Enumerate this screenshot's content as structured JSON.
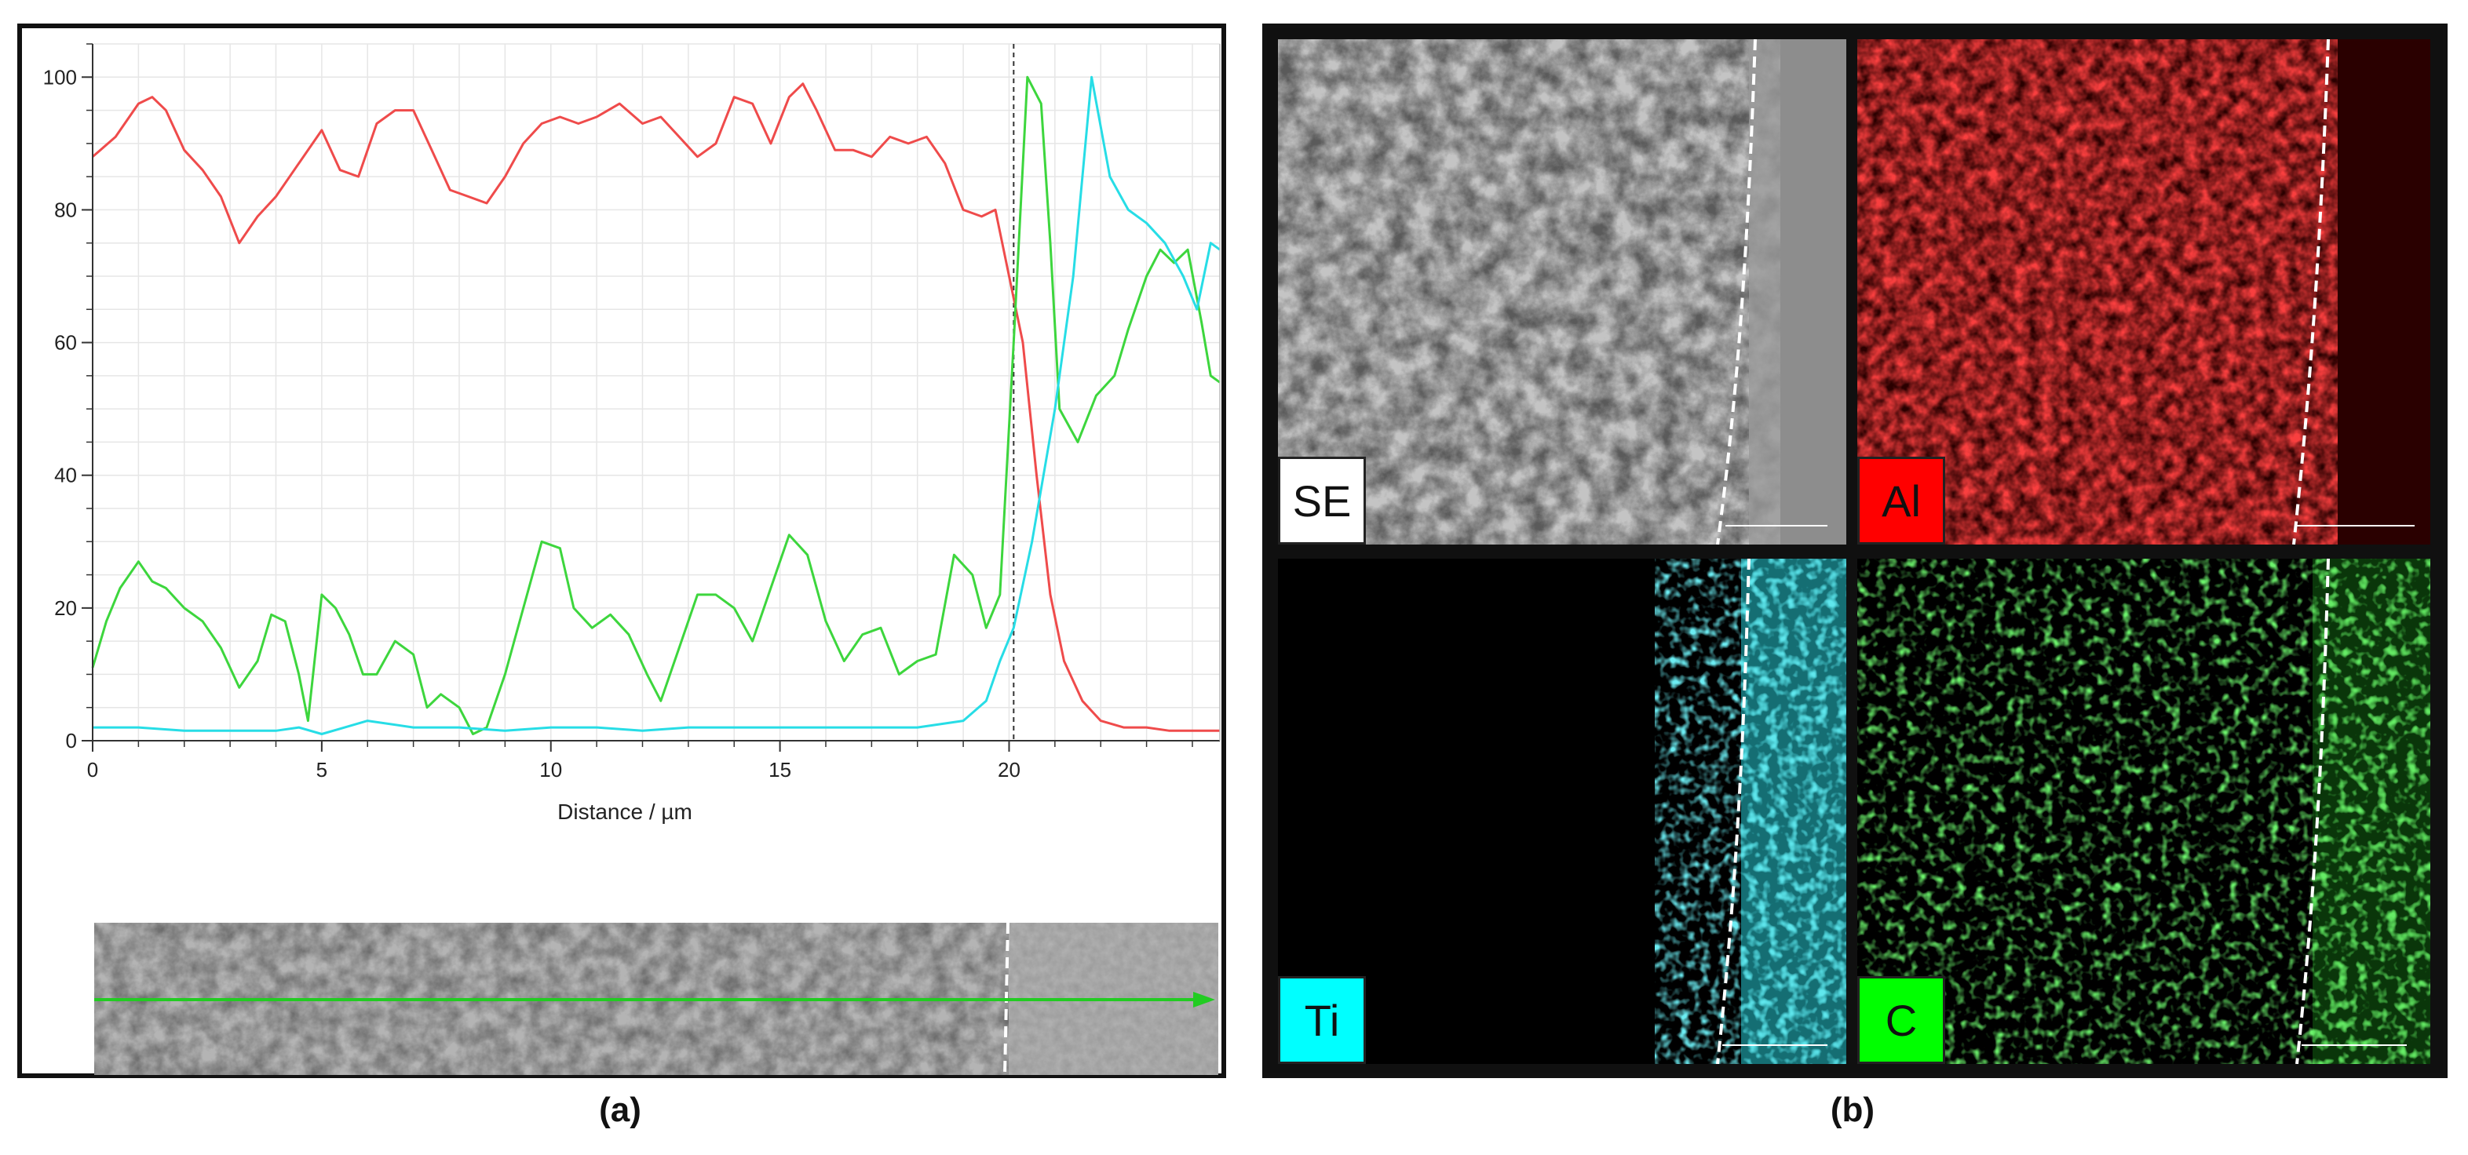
{
  "captions": {
    "a": "(a)",
    "b": "(b)"
  },
  "colors": {
    "al": "#ef4b4b",
    "ti": "#27dde6",
    "c": "#3dd63d",
    "scan_line": "#22cc22"
  },
  "chart_data": {
    "type": "line",
    "title": "",
    "xlabel": "Distance / µm",
    "ylabel": "",
    "xlim": [
      0,
      24.6
    ],
    "ylim": [
      0,
      105
    ],
    "xticks": [
      0,
      5,
      10,
      15,
      20
    ],
    "yticks": [
      0,
      20,
      40,
      60,
      80,
      100
    ],
    "grid": true,
    "interface_x": 20.1,
    "series": [
      {
        "color": "#ef4b4b",
        "points": [
          [
            0,
            88
          ],
          [
            0.5,
            91
          ],
          [
            1,
            96
          ],
          [
            1.3,
            97
          ],
          [
            1.6,
            95
          ],
          [
            2,
            89
          ],
          [
            2.4,
            86
          ],
          [
            2.8,
            82
          ],
          [
            3.2,
            75
          ],
          [
            3.6,
            79
          ],
          [
            4,
            82
          ],
          [
            4.4,
            86
          ],
          [
            5,
            92
          ],
          [
            5.4,
            86
          ],
          [
            5.8,
            85
          ],
          [
            6.2,
            93
          ],
          [
            6.6,
            95
          ],
          [
            7,
            95
          ],
          [
            7.4,
            89
          ],
          [
            7.8,
            83
          ],
          [
            8.2,
            82
          ],
          [
            8.6,
            81
          ],
          [
            9,
            85
          ],
          [
            9.4,
            90
          ],
          [
            9.8,
            93
          ],
          [
            10.2,
            94
          ],
          [
            10.6,
            93
          ],
          [
            11,
            94
          ],
          [
            11.5,
            96
          ],
          [
            12,
            93
          ],
          [
            12.4,
            94
          ],
          [
            12.8,
            91
          ],
          [
            13.2,
            88
          ],
          [
            13.6,
            90
          ],
          [
            14,
            97
          ],
          [
            14.4,
            96
          ],
          [
            14.8,
            90
          ],
          [
            15.2,
            97
          ],
          [
            15.5,
            99
          ],
          [
            15.8,
            95
          ],
          [
            16.2,
            89
          ],
          [
            16.6,
            89
          ],
          [
            17,
            88
          ],
          [
            17.4,
            91
          ],
          [
            17.8,
            90
          ],
          [
            18.2,
            91
          ],
          [
            18.6,
            87
          ],
          [
            19,
            80
          ],
          [
            19.4,
            79
          ],
          [
            19.7,
            80
          ],
          [
            20,
            70
          ],
          [
            20.3,
            60
          ],
          [
            20.6,
            40
          ],
          [
            20.9,
            22
          ],
          [
            21.2,
            12
          ],
          [
            21.6,
            6
          ],
          [
            22,
            3
          ],
          [
            22.5,
            2
          ],
          [
            23,
            2
          ],
          [
            23.5,
            1.5
          ],
          [
            24,
            1.5
          ],
          [
            24.6,
            1.5
          ]
        ]
      },
      {
        "color": "#3dd63d",
        "points": [
          [
            0,
            11
          ],
          [
            0.3,
            18
          ],
          [
            0.6,
            23
          ],
          [
            1,
            27
          ],
          [
            1.3,
            24
          ],
          [
            1.6,
            23
          ],
          [
            2,
            20
          ],
          [
            2.4,
            18
          ],
          [
            2.8,
            14
          ],
          [
            3.2,
            8
          ],
          [
            3.6,
            12
          ],
          [
            3.9,
            19
          ],
          [
            4.2,
            18
          ],
          [
            4.5,
            10
          ],
          [
            4.7,
            3
          ],
          [
            5,
            22
          ],
          [
            5.3,
            20
          ],
          [
            5.6,
            16
          ],
          [
            5.9,
            10
          ],
          [
            6.2,
            10
          ],
          [
            6.6,
            15
          ],
          [
            7,
            13
          ],
          [
            7.3,
            5
          ],
          [
            7.6,
            7
          ],
          [
            8,
            5
          ],
          [
            8.3,
            1
          ],
          [
            8.6,
            2
          ],
          [
            9,
            10
          ],
          [
            9.4,
            20
          ],
          [
            9.8,
            30
          ],
          [
            10.2,
            29
          ],
          [
            10.5,
            20
          ],
          [
            10.9,
            17
          ],
          [
            11.3,
            19
          ],
          [
            11.7,
            16
          ],
          [
            12.1,
            10
          ],
          [
            12.4,
            6
          ],
          [
            12.8,
            14
          ],
          [
            13.2,
            22
          ],
          [
            13.6,
            22
          ],
          [
            14,
            20
          ],
          [
            14.4,
            15
          ],
          [
            14.8,
            23
          ],
          [
            15.2,
            31
          ],
          [
            15.6,
            28
          ],
          [
            16,
            18
          ],
          [
            16.4,
            12
          ],
          [
            16.8,
            16
          ],
          [
            17.2,
            17
          ],
          [
            17.6,
            10
          ],
          [
            18,
            12
          ],
          [
            18.4,
            13
          ],
          [
            18.8,
            28
          ],
          [
            19.2,
            25
          ],
          [
            19.5,
            17
          ],
          [
            19.8,
            22
          ],
          [
            20.1,
            60
          ],
          [
            20.4,
            100
          ],
          [
            20.7,
            96
          ],
          [
            20.9,
            75
          ],
          [
            21.1,
            50
          ],
          [
            21.5,
            45
          ],
          [
            21.9,
            52
          ],
          [
            22.3,
            55
          ],
          [
            22.6,
            62
          ],
          [
            23,
            70
          ],
          [
            23.3,
            74
          ],
          [
            23.6,
            72
          ],
          [
            23.9,
            74
          ],
          [
            24.2,
            63
          ],
          [
            24.4,
            55
          ],
          [
            24.6,
            54
          ]
        ]
      },
      {
        "color": "#27dde6",
        "points": [
          [
            0,
            2
          ],
          [
            1,
            2
          ],
          [
            2,
            1.5
          ],
          [
            3,
            1.5
          ],
          [
            4,
            1.5
          ],
          [
            4.5,
            2
          ],
          [
            5,
            1
          ],
          [
            5.5,
            2
          ],
          [
            6,
            3
          ],
          [
            7,
            2
          ],
          [
            8,
            2
          ],
          [
            9,
            1.5
          ],
          [
            10,
            2
          ],
          [
            11,
            2
          ],
          [
            12,
            1.5
          ],
          [
            13,
            2
          ],
          [
            14,
            2
          ],
          [
            15,
            2
          ],
          [
            16,
            2
          ],
          [
            17,
            2
          ],
          [
            18,
            2
          ],
          [
            19,
            3
          ],
          [
            19.5,
            6
          ],
          [
            19.8,
            12
          ],
          [
            20.1,
            17
          ],
          [
            20.5,
            30
          ],
          [
            21,
            50
          ],
          [
            21.4,
            70
          ],
          [
            21.8,
            100
          ],
          [
            22.2,
            85
          ],
          [
            22.6,
            80
          ],
          [
            23,
            78
          ],
          [
            23.4,
            75
          ],
          [
            23.8,
            70
          ],
          [
            24.1,
            65
          ],
          [
            24.4,
            75
          ],
          [
            24.6,
            74
          ]
        ]
      }
    ]
  },
  "maps": [
    {
      "label": "SE"
    },
    {
      "label": "Al"
    },
    {
      "label": "Ti"
    },
    {
      "label": "C"
    }
  ]
}
